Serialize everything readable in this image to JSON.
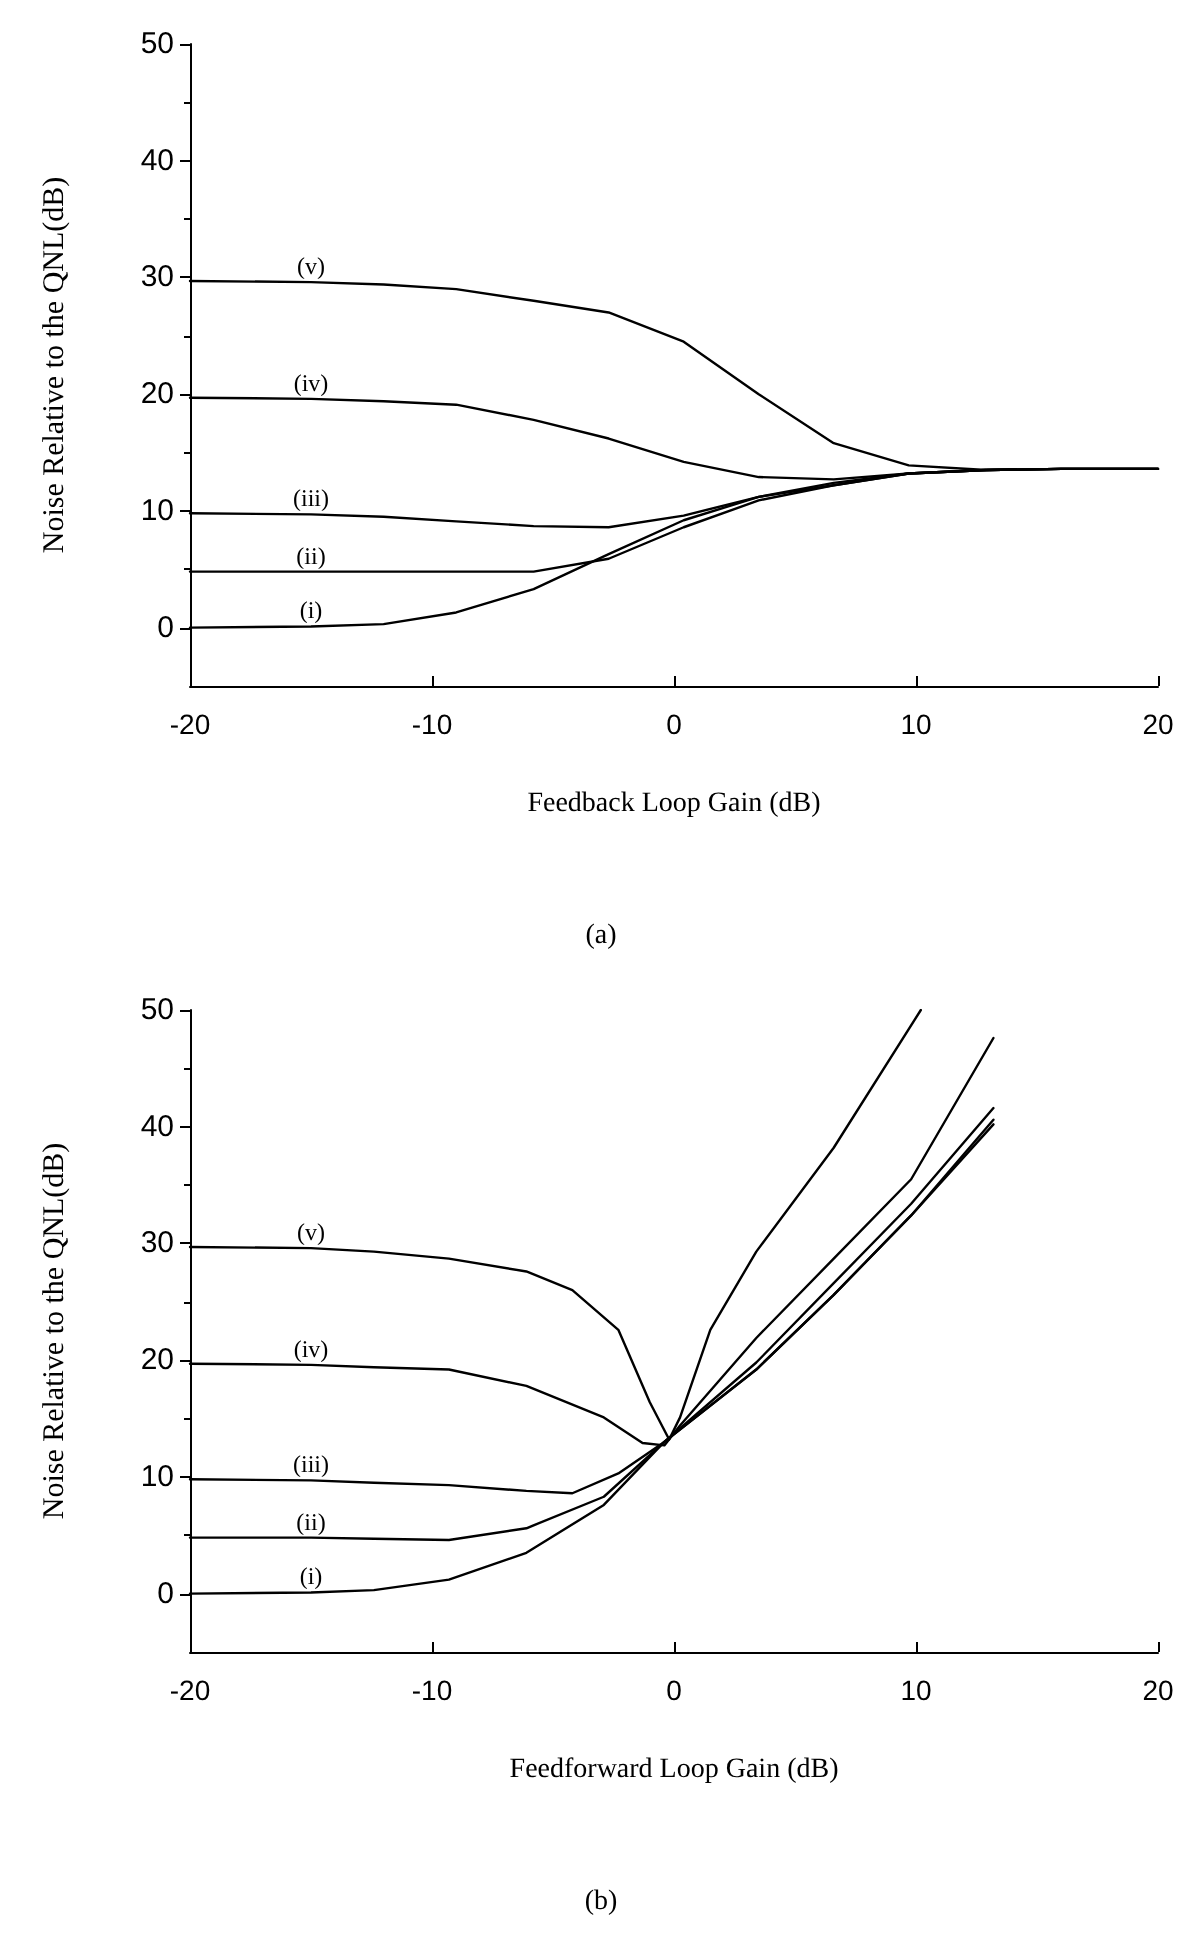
{
  "chart_data": [
    {
      "type": "line",
      "xlabel": "Feedback Loop Gain (dB)",
      "ylabel": "Noise Relative to the QNL(dB)",
      "annotations": [
        "(a)"
      ],
      "xlim": [
        -20,
        20
      ],
      "ylim": [
        -5,
        50
      ],
      "xticks": [
        -20,
        -10,
        0,
        10,
        20
      ],
      "yticks": [
        0,
        10,
        20,
        30,
        40,
        50
      ],
      "grid": false,
      "legend": false,
      "marker": "none",
      "line_style": "solid",
      "x": [
        -20,
        -15,
        -12,
        -9,
        -5.8,
        -2.7,
        0.4,
        3.5,
        6.6,
        9.7,
        12.9,
        16,
        20
      ],
      "series": [
        {
          "name": "(i)",
          "color": "#000000",
          "values": [
            0,
            0.1,
            0.3,
            1.3,
            3.3,
            6.3,
            9.2,
            11.2,
            12.4,
            13.2,
            13.5,
            13.6,
            13.6
          ]
        },
        {
          "name": "(ii)",
          "color": "#000000",
          "values": [
            4.8,
            4.8,
            4.8,
            4.8,
            4.8,
            5.9,
            8.6,
            10.9,
            12.2,
            13.2,
            13.5,
            13.6,
            13.6
          ]
        },
        {
          "name": "(iii)",
          "color": "#000000",
          "values": [
            9.8,
            9.7,
            9.5,
            9.1,
            8.7,
            8.6,
            9.6,
            11.2,
            12.2,
            13.2,
            13.5,
            13.6,
            13.6
          ]
        },
        {
          "name": "(iv)",
          "color": "#000000",
          "values": [
            19.7,
            19.6,
            19.4,
            19.1,
            17.8,
            16.2,
            14.2,
            12.9,
            12.7,
            13.2,
            13.5,
            13.6,
            13.6
          ]
        },
        {
          "name": "(v)",
          "color": "#000000",
          "values": [
            29.7,
            29.6,
            29.4,
            29,
            28,
            27,
            24.5,
            20,
            15.8,
            13.9,
            13.5,
            13.6,
            13.6
          ]
        }
      ]
    },
    {
      "type": "line",
      "xlabel": "Feedforward Loop Gain (dB)",
      "ylabel": "Noise Relative to the QNL(dB)",
      "annotations": [
        "(b)"
      ],
      "xlim": [
        -20,
        20
      ],
      "ylim": [
        -5,
        50
      ],
      "xticks": [
        -20,
        -10,
        0,
        10,
        20
      ],
      "yticks": [
        0,
        10,
        20,
        30,
        40,
        50
      ],
      "grid": false,
      "legend": false,
      "marker": "none",
      "line_style": "solid",
      "series": [
        {
          "name": "(i)",
          "color": "#000000",
          "x": [
            -20,
            -15,
            -12.4,
            -9.3,
            -6.1,
            -2.9,
            -0.4,
            3.4,
            6.6,
            9.8,
            13.2
          ],
          "values": [
            0,
            0.1,
            0.3,
            1.2,
            3.5,
            7.6,
            13,
            19.2,
            25.6,
            32.4,
            40.2
          ]
        },
        {
          "name": "(ii)",
          "color": "#000000",
          "x": [
            -20,
            -15,
            -12.4,
            -9.3,
            -6.1,
            -2.9,
            -0.4,
            3.4,
            6.6,
            9.8,
            13.2
          ],
          "values": [
            4.8,
            4.8,
            4.7,
            4.6,
            5.6,
            8.3,
            13,
            19.2,
            25.6,
            32.4,
            40.6
          ]
        },
        {
          "name": "(iii)",
          "color": "#000000",
          "x": [
            -20,
            -15,
            -12.4,
            -9.3,
            -6.1,
            -4.2,
            -2.3,
            -0.4,
            3.4,
            6.6,
            9.8,
            13.2
          ],
          "values": [
            9.8,
            9.7,
            9.5,
            9.3,
            8.8,
            8.6,
            10.3,
            13,
            19.8,
            26.6,
            33.4,
            41.6
          ]
        },
        {
          "name": "(iv)",
          "color": "#000000",
          "x": [
            -20,
            -15,
            -12.4,
            -9.3,
            -6.1,
            -2.9,
            -1.3,
            -0.4,
            0.25,
            3.4,
            6.6,
            9.8,
            13.2
          ],
          "values": [
            19.7,
            19.6,
            19.4,
            19.2,
            17.8,
            15.1,
            12.9,
            12.7,
            14.4,
            21.9,
            28.7,
            35.5,
            47.6
          ]
        },
        {
          "name": "(v)",
          "color": "#000000",
          "x": [
            -20,
            -15,
            -12.4,
            -9.3,
            -6.1,
            -4.2,
            -2.3,
            -1,
            -0.2,
            0.25,
            1.5,
            3.4,
            6.6,
            10.2
          ],
          "values": [
            29.7,
            29.6,
            29.3,
            28.7,
            27.6,
            26,
            22.6,
            16.4,
            13.2,
            15.1,
            22.6,
            29.3,
            38.2,
            50
          ]
        }
      ]
    }
  ]
}
